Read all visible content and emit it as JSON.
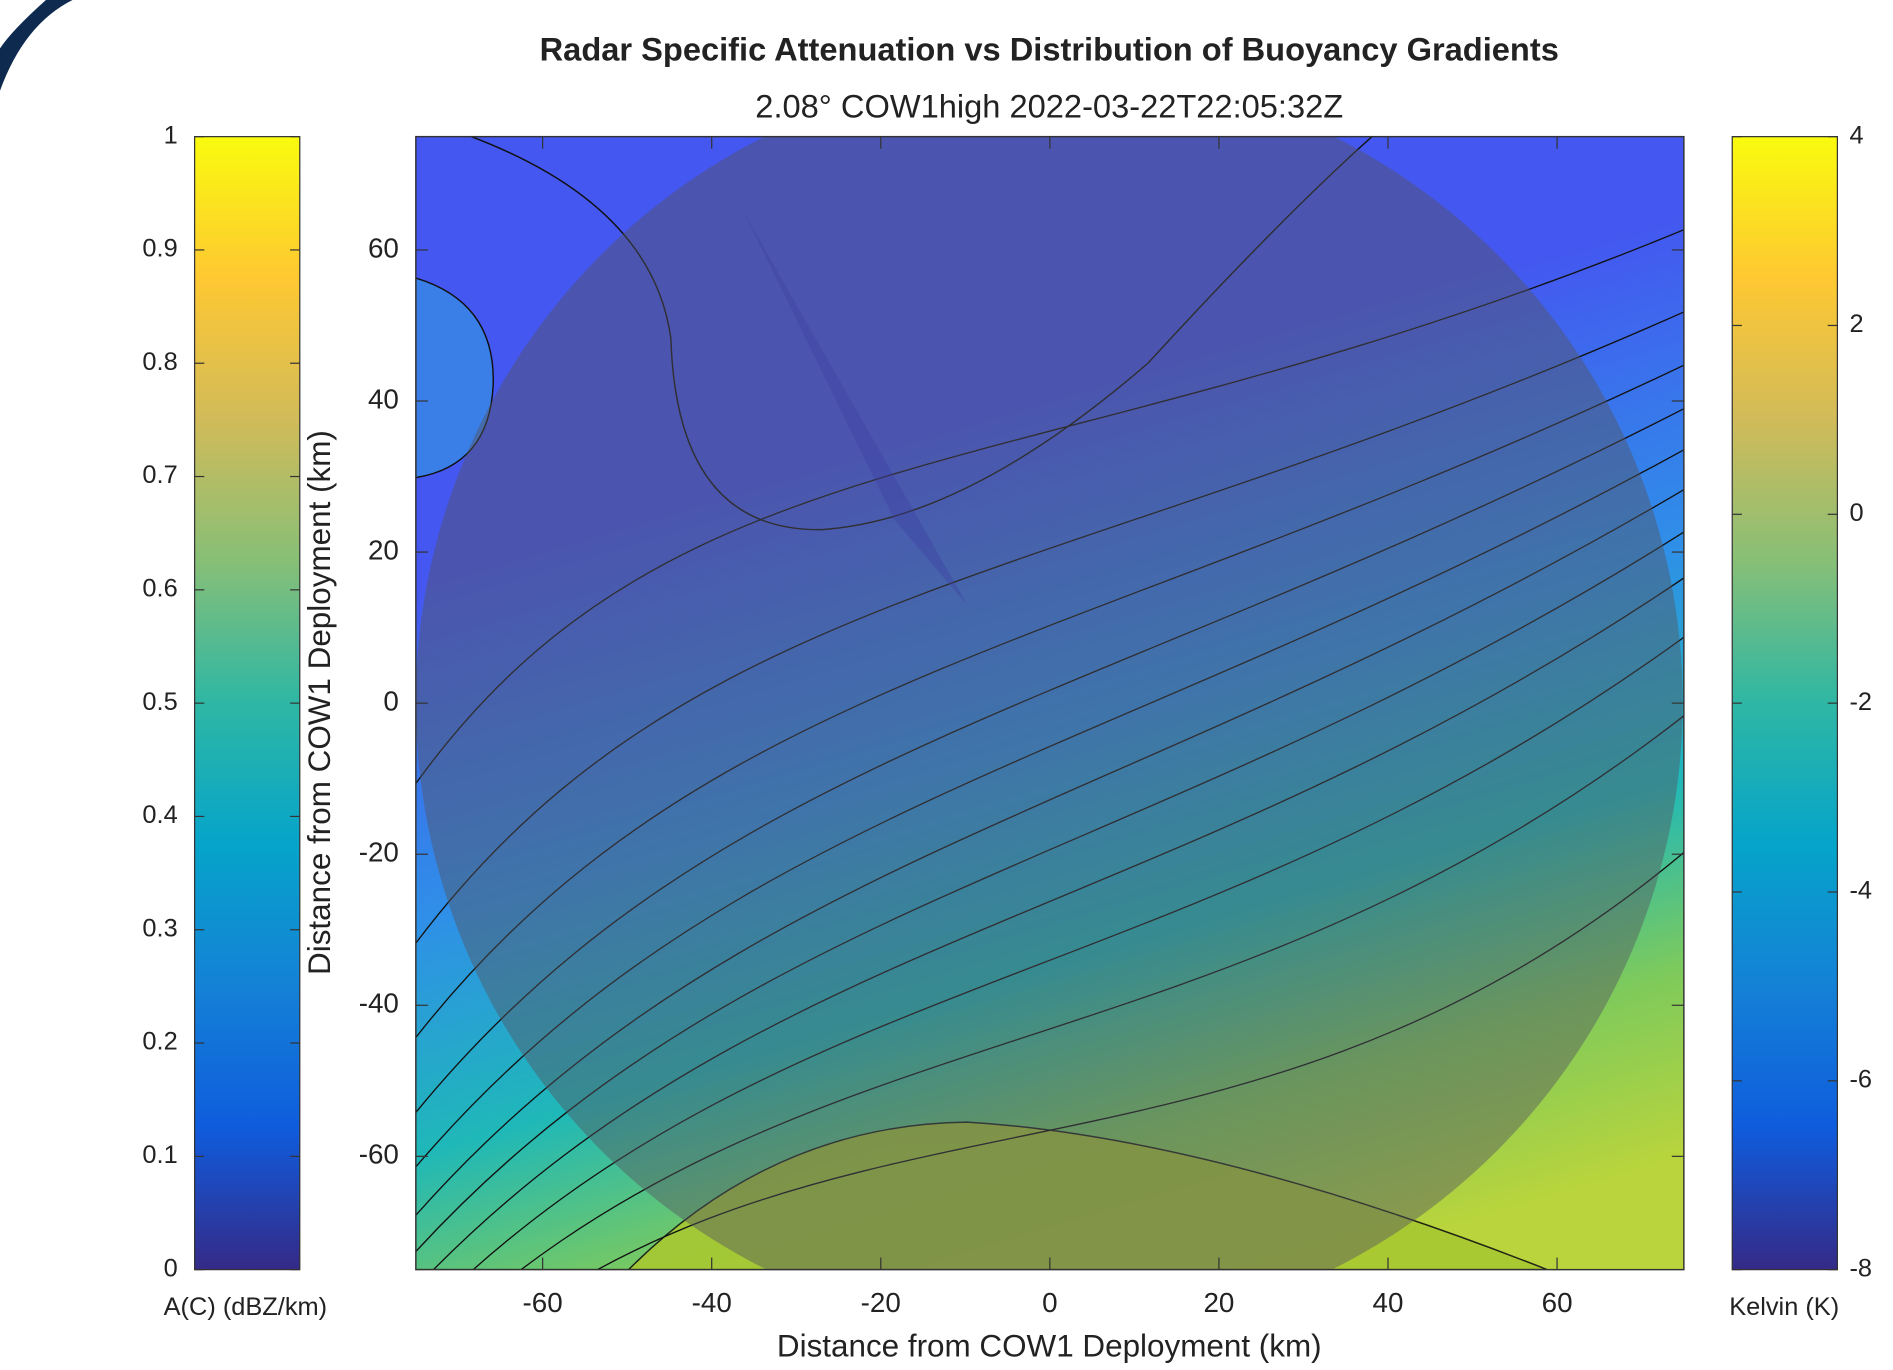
{
  "chart_data": {
    "type": "radar-overlay",
    "title": "Radar Specific Attenuation vs Distribution of Buoyancy Gradients",
    "subtitle": "2.08° COW1high 2022-03-22T22:05:32Z",
    "xlabel": "Distance from COW1 Deployment (km)",
    "ylabel": "Distance from COW1 Deployment (km)",
    "xlim": [
      -75,
      75
    ],
    "ylim": [
      -75,
      75
    ],
    "xticks": [
      -60,
      -40,
      -20,
      0,
      20,
      40,
      60
    ],
    "yticks": [
      -60,
      -40,
      -20,
      0,
      20,
      40,
      60
    ],
    "colorbars": [
      {
        "label": "A(C) (dBZ/km)",
        "lim": [
          0,
          1
        ],
        "ticks": [
          0,
          0.1,
          0.2,
          0.3,
          0.4,
          0.5,
          0.6,
          0.7,
          0.8,
          0.9,
          1
        ]
      },
      {
        "label": "Kelvin (K)",
        "lim": [
          -8,
          4
        ],
        "ticks": [
          -8,
          -6,
          -4,
          -2,
          0,
          2,
          4
        ]
      }
    ]
  }
}
